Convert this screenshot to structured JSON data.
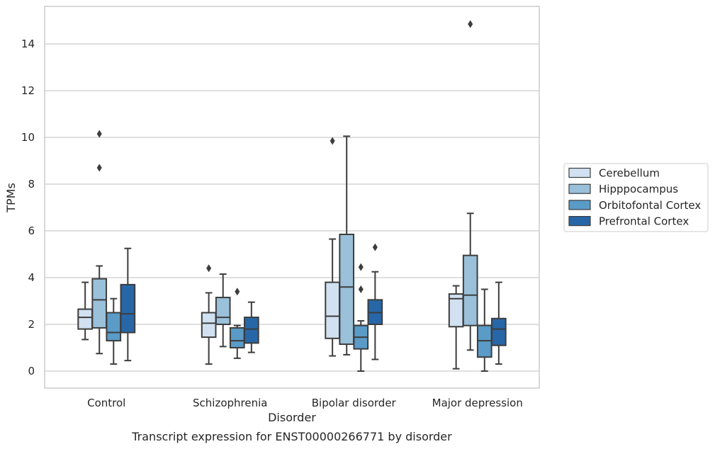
{
  "chart_data": {
    "type": "box",
    "caption": "Transcript expression for ENST00000266771 by disorder",
    "xlabel": "Disorder",
    "ylabel": "TPMs",
    "ylim": [
      -0.7,
      15.6
    ],
    "yticks": [
      0,
      2,
      4,
      6,
      8,
      10,
      12,
      14
    ],
    "grid": "horizontal",
    "legend_position": "outside-right",
    "categories": [
      "Control",
      "Schizophrenia",
      "Bipolar disorder",
      "Major depression"
    ],
    "series": [
      {
        "name": "Cerebellum",
        "color": "#d1e1f1",
        "boxes": [
          {
            "whislo": 1.35,
            "q1": 1.8,
            "med": 2.3,
            "q3": 2.65,
            "whishi": 3.8,
            "fliers": []
          },
          {
            "whislo": 0.3,
            "q1": 1.45,
            "med": 2.05,
            "q3": 2.5,
            "whishi": 3.35,
            "fliers": [
              4.4
            ]
          },
          {
            "whislo": 0.65,
            "q1": 1.4,
            "med": 2.35,
            "q3": 3.8,
            "whishi": 5.65,
            "fliers": [
              9.85
            ]
          },
          {
            "whislo": 0.1,
            "q1": 1.9,
            "med": 3.1,
            "q3": 3.3,
            "whishi": 3.65,
            "fliers": []
          }
        ]
      },
      {
        "name": "Hipppocampus",
        "color": "#9ac0da",
        "boxes": [
          {
            "whislo": 0.75,
            "q1": 1.85,
            "med": 3.05,
            "q3": 3.95,
            "whishi": 4.5,
            "fliers": [
              8.7,
              10.15
            ]
          },
          {
            "whislo": 1.05,
            "q1": 2.0,
            "med": 2.3,
            "q3": 3.15,
            "whishi": 4.15,
            "fliers": []
          },
          {
            "whislo": 0.7,
            "q1": 1.15,
            "med": 3.6,
            "q3": 5.85,
            "whishi": 10.05,
            "fliers": []
          },
          {
            "whislo": 0.9,
            "q1": 1.95,
            "med": 3.25,
            "q3": 4.95,
            "whishi": 6.75,
            "fliers": [
              14.85
            ]
          }
        ]
      },
      {
        "name": "Orbitofontal Cortex",
        "color": "#5a9bc8",
        "boxes": [
          {
            "whislo": 0.3,
            "q1": 1.3,
            "med": 1.65,
            "q3": 2.5,
            "whishi": 3.1,
            "fliers": []
          },
          {
            "whislo": 0.55,
            "q1": 1.0,
            "med": 1.3,
            "q3": 1.85,
            "whishi": 1.95,
            "fliers": [
              3.4
            ]
          },
          {
            "whislo": 0.0,
            "q1": 0.95,
            "med": 1.45,
            "q3": 1.95,
            "whishi": 2.15,
            "fliers": [
              3.5,
              4.45
            ]
          },
          {
            "whislo": 0.0,
            "q1": 0.6,
            "med": 1.3,
            "q3": 1.95,
            "whishi": 3.5,
            "fliers": []
          }
        ]
      },
      {
        "name": "Prefrontal Cortex",
        "color": "#2767a8",
        "boxes": [
          {
            "whislo": 0.45,
            "q1": 1.65,
            "med": 2.45,
            "q3": 3.7,
            "whishi": 5.25,
            "fliers": []
          },
          {
            "whislo": 0.8,
            "q1": 1.2,
            "med": 1.8,
            "q3": 2.3,
            "whishi": 2.95,
            "fliers": []
          },
          {
            "whislo": 0.5,
            "q1": 2.0,
            "med": 2.5,
            "q3": 3.05,
            "whishi": 4.25,
            "fliers": [
              5.3
            ]
          },
          {
            "whislo": 0.3,
            "q1": 1.1,
            "med": 1.8,
            "q3": 2.25,
            "whishi": 3.8,
            "fliers": []
          }
        ]
      }
    ]
  }
}
